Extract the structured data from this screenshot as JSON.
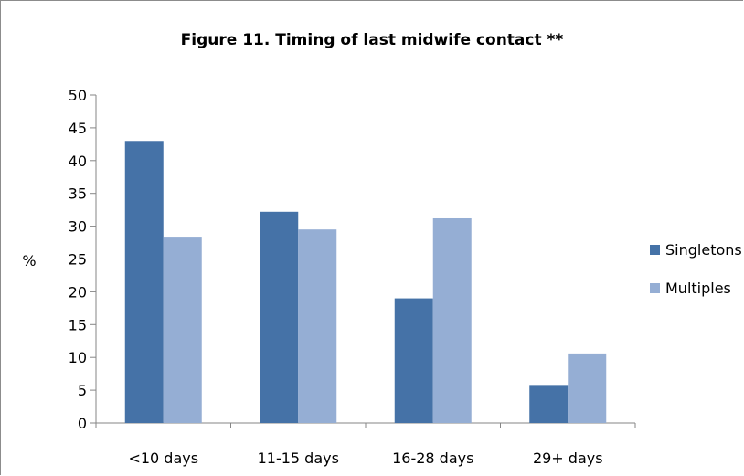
{
  "chart_data": {
    "type": "bar",
    "title": "Figure 11. Timing of last midwife contact **",
    "xlabel": "",
    "ylabel": "%",
    "categories": [
      "<10 days",
      "11-15 days",
      "16-28 days",
      "29+ days"
    ],
    "series": [
      {
        "name": "Singletons",
        "values": [
          43.0,
          32.2,
          19.0,
          5.8
        ],
        "color": "#4572A7"
      },
      {
        "name": "Multiples",
        "values": [
          28.4,
          29.5,
          31.2,
          10.6
        ],
        "color": "#95AED4"
      }
    ],
    "ylim": [
      0,
      50
    ],
    "yticks": [
      0,
      5,
      10,
      15,
      20,
      25,
      30,
      35,
      40,
      45,
      50
    ],
    "grid": false,
    "legend_position": "right"
  }
}
